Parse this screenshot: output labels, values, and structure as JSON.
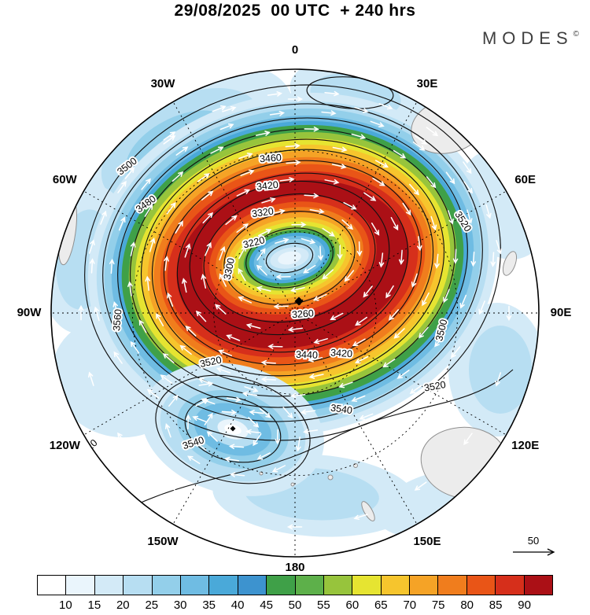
{
  "header": {
    "title": "29/08/2025  00 UTC  + 240 hrs",
    "logo_text": "MODES",
    "logo_mark": "©"
  },
  "map": {
    "longitude_labels": [
      "0",
      "30E",
      "60E",
      "90E",
      "120E",
      "150E",
      "180",
      "150W",
      "120W",
      "90W",
      "60W",
      "30W"
    ],
    "contour_labels": [
      "3500",
      "3460",
      "3420",
      "3320",
      "3220",
      "3480",
      "3300",
      "3260",
      "3440",
      "3420",
      "3520",
      "3500",
      "3540",
      "3540",
      "3520",
      "3520",
      "3520",
      "3560"
    ],
    "vector_scale_label": "50"
  },
  "colorbar": {
    "tick_labels": [
      "10",
      "15",
      "20",
      "25",
      "30",
      "35",
      "40",
      "45",
      "50",
      "55",
      "60",
      "65",
      "70",
      "75",
      "80",
      "85",
      "90"
    ],
    "colors": [
      "#ffffff",
      "#eaf5fc",
      "#d3eaf7",
      "#b7def2",
      "#93cfea",
      "#6fbce3",
      "#4aa9d9",
      "#3d93cf",
      "#3fa048",
      "#5db04a",
      "#97c43c",
      "#e6e431",
      "#f6c52d",
      "#f5a326",
      "#f07d1d",
      "#e95517",
      "#d62f1b",
      "#ab1016"
    ]
  },
  "chart_data": {
    "type": "heatmap",
    "title": "29/08/2025 00 UTC + 240 hrs",
    "projection": "pole-centered polar stereographic, meridians labeled every 30 degrees",
    "longitude_labels": [
      "0",
      "30E",
      "60E",
      "90E",
      "120E",
      "150E",
      "180",
      "150W",
      "120W",
      "90W",
      "60W",
      "30W"
    ],
    "shading_levels": [
      10,
      15,
      20,
      25,
      30,
      35,
      40,
      45,
      50,
      55,
      60,
      65,
      70,
      75,
      80,
      85,
      90
    ],
    "shading_colors": [
      "#ffffff",
      "#eaf5fc",
      "#d3eaf7",
      "#b7def2",
      "#93cfea",
      "#6fbce3",
      "#4aa9d9",
      "#3d93cf",
      "#3fa048",
      "#5db04a",
      "#97c43c",
      "#e6e431",
      "#f6c52d",
      "#f5a326",
      "#f07d1d",
      "#e95517",
      "#d62f1b",
      "#ab1016"
    ],
    "contour_labeled_values": [
      3220,
      3260,
      3300,
      3320,
      3420,
      3440,
      3460,
      3480,
      3500,
      3520,
      3540,
      3560
    ],
    "contour_interval": 20,
    "wind_vector_reference": 50,
    "features": {
      "primary_vortex": "large closed circulation near the pole, innermost labeled contour 3220, surrounded by an annular wind-speed maximum exceeding 90",
      "secondary_low": "weaker closed circulation toward 150W with contours 3520-3540 and light-blue shading",
      "outer_contours": "3520/3540/3560 contours meander near the map edge"
    }
  }
}
